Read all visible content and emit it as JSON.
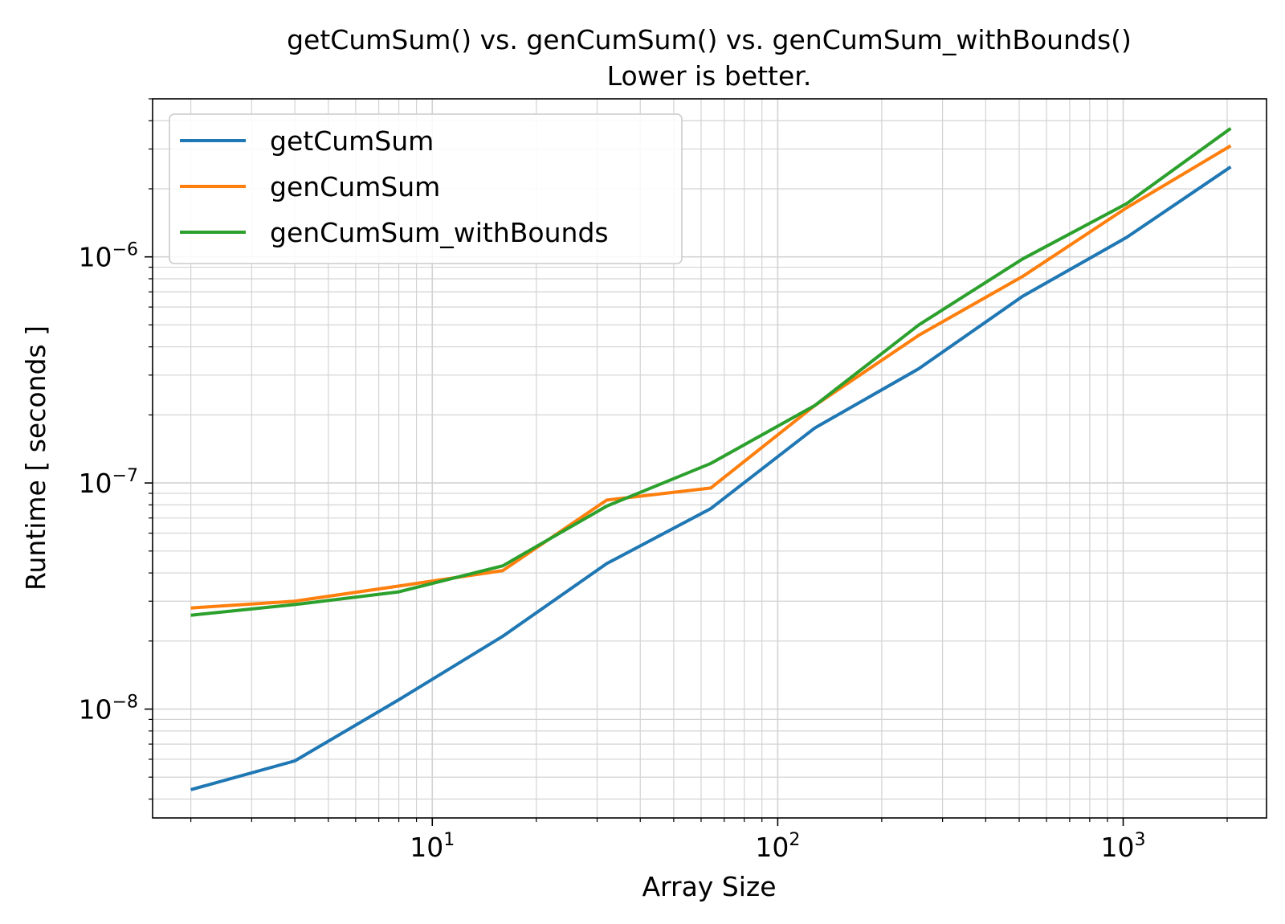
{
  "chart_data": {
    "type": "line",
    "title": "getCumSum() vs. genCumSum() vs. genCumSum_withBounds()",
    "subtitle": "Lower is better.",
    "xlabel": "Array Size",
    "ylabel": "Runtime [ seconds ]",
    "xscale": "log",
    "yscale": "log",
    "xlim": [
      1.55,
      2600
    ],
    "ylim": [
      3.3e-09,
      5e-06
    ],
    "grid": true,
    "legend_position": "top-left",
    "x_ticks": [
      {
        "base": "10",
        "exp": "1",
        "value": 10
      },
      {
        "base": "10",
        "exp": "2",
        "value": 100
      },
      {
        "base": "10",
        "exp": "3",
        "value": 1000
      }
    ],
    "y_ticks": [
      {
        "base": "10",
        "exp": "−8",
        "value": 1e-08
      },
      {
        "base": "10",
        "exp": "−7",
        "value": 1e-07
      },
      {
        "base": "10",
        "exp": "−6",
        "value": 1e-06
      }
    ],
    "x": [
      2,
      4,
      8,
      16,
      32,
      64,
      128,
      256,
      512,
      1024,
      2048
    ],
    "series": [
      {
        "name": "getCumSum",
        "color": "#1f77b4",
        "values": [
          4.4e-09,
          5.9e-09,
          1.1e-08,
          2.1e-08,
          4.4e-08,
          7.7e-08,
          1.75e-07,
          3.2e-07,
          6.7e-07,
          1.22e-06,
          2.5e-06
        ]
      },
      {
        "name": "genCumSum",
        "color": "#ff7f0e",
        "values": [
          2.8e-08,
          3e-08,
          3.5e-08,
          4.1e-08,
          8.4e-08,
          9.5e-08,
          2.2e-07,
          4.5e-07,
          8.2e-07,
          1.65e-06,
          3.1e-06
        ]
      },
      {
        "name": "genCumSum_withBounds",
        "color": "#2ca02c",
        "values": [
          2.6e-08,
          2.9e-08,
          3.3e-08,
          4.3e-08,
          7.9e-08,
          1.22e-07,
          2.2e-07,
          5e-07,
          9.8e-07,
          1.72e-06,
          3.7e-06
        ]
      }
    ]
  }
}
